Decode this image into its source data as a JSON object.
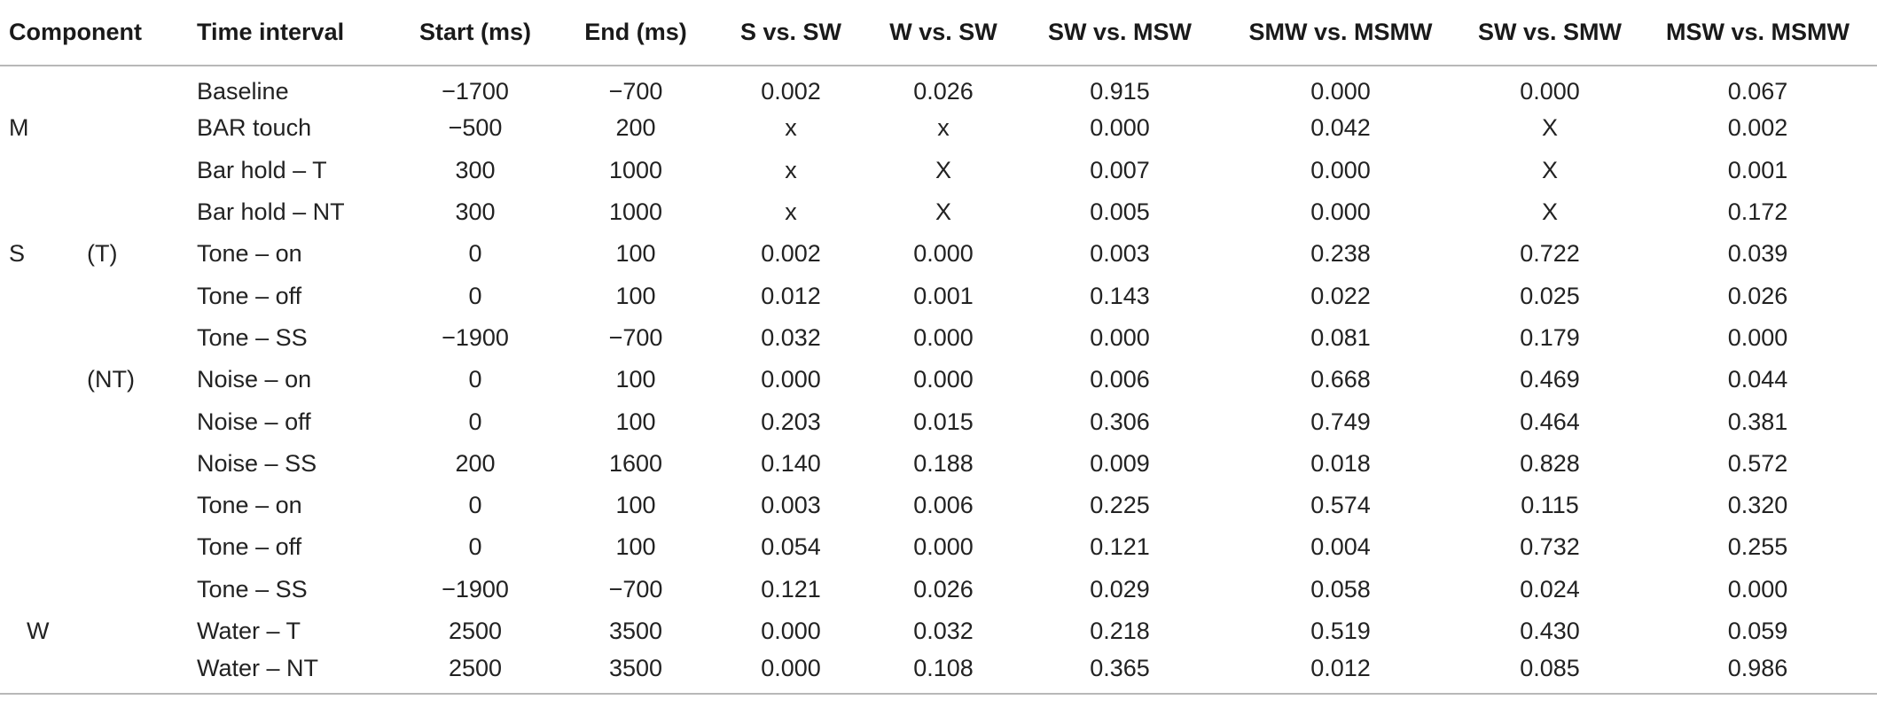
{
  "table": {
    "headers": {
      "component": "Component",
      "time_interval": "Time interval",
      "start": "Start (ms)",
      "end": "End (ms)",
      "s_vs_sw": "S vs. SW",
      "w_vs_sw": "W vs. SW",
      "sw_vs_msw": "SW vs. MSW",
      "smw_vs_msmw": "SMW vs. MSMW",
      "sw_vs_smw": "SW vs. SMW",
      "msw_vs_msmw": "MSW vs. MSMW"
    },
    "rows": [
      {
        "component": "",
        "sub": "",
        "interval": "Baseline",
        "start": "−1700",
        "end": "−700",
        "s_vs_sw": "0.002",
        "w_vs_sw": "0.026",
        "sw_vs_msw": "0.915",
        "smw_vs_msmw": "0.000",
        "sw_vs_smw": "0.000",
        "msw_vs_msmw": "0.067"
      },
      {
        "component": "M",
        "sub": "",
        "interval": "BAR touch",
        "start": "−500",
        "end": "200",
        "s_vs_sw": "x",
        "w_vs_sw": "x",
        "sw_vs_msw": "0.000",
        "smw_vs_msmw": "0.042",
        "sw_vs_smw": "X",
        "msw_vs_msmw": "0.002"
      },
      {
        "component": "",
        "sub": "",
        "interval": "Bar hold – T",
        "start": "300",
        "end": "1000",
        "s_vs_sw": "x",
        "w_vs_sw": "X",
        "sw_vs_msw": "0.007",
        "smw_vs_msmw": "0.000",
        "sw_vs_smw": "X",
        "msw_vs_msmw": "0.001"
      },
      {
        "component": "",
        "sub": "",
        "interval": "Bar hold – NT",
        "start": "300",
        "end": "1000",
        "s_vs_sw": "x",
        "w_vs_sw": "X",
        "sw_vs_msw": "0.005",
        "smw_vs_msmw": "0.000",
        "sw_vs_smw": "X",
        "msw_vs_msmw": "0.172"
      },
      {
        "component": "S",
        "sub": "(T)",
        "interval": "Tone – on",
        "start": "0",
        "end": "100",
        "s_vs_sw": "0.002",
        "w_vs_sw": "0.000",
        "sw_vs_msw": "0.003",
        "smw_vs_msmw": "0.238",
        "sw_vs_smw": "0.722",
        "msw_vs_msmw": "0.039"
      },
      {
        "component": "",
        "sub": "",
        "interval": "Tone – off",
        "start": "0",
        "end": "100",
        "s_vs_sw": "0.012",
        "w_vs_sw": "0.001",
        "sw_vs_msw": "0.143",
        "smw_vs_msmw": "0.022",
        "sw_vs_smw": "0.025",
        "msw_vs_msmw": "0.026"
      },
      {
        "component": "",
        "sub": "",
        "interval": "Tone – SS",
        "start": "−1900",
        "end": "−700",
        "s_vs_sw": "0.032",
        "w_vs_sw": "0.000",
        "sw_vs_msw": "0.000",
        "smw_vs_msmw": "0.081",
        "sw_vs_smw": "0.179",
        "msw_vs_msmw": "0.000"
      },
      {
        "component": "",
        "sub": "(NT)",
        "interval": "Noise – on",
        "start": "0",
        "end": "100",
        "s_vs_sw": "0.000",
        "w_vs_sw": "0.000",
        "sw_vs_msw": "0.006",
        "smw_vs_msmw": "0.668",
        "sw_vs_smw": "0.469",
        "msw_vs_msmw": "0.044"
      },
      {
        "component": "",
        "sub": "",
        "interval": "Noise – off",
        "start": "0",
        "end": "100",
        "s_vs_sw": "0.203",
        "w_vs_sw": "0.015",
        "sw_vs_msw": "0.306",
        "smw_vs_msmw": "0.749",
        "sw_vs_smw": "0.464",
        "msw_vs_msmw": "0.381"
      },
      {
        "component": "",
        "sub": "",
        "interval": "Noise – SS",
        "start": "200",
        "end": "1600",
        "s_vs_sw": "0.140",
        "w_vs_sw": "0.188",
        "sw_vs_msw": "0.009",
        "smw_vs_msmw": "0.018",
        "sw_vs_smw": "0.828",
        "msw_vs_msmw": "0.572"
      },
      {
        "component": "",
        "sub": "",
        "interval": "Tone – on",
        "start": "0",
        "end": "100",
        "s_vs_sw": "0.003",
        "w_vs_sw": "0.006",
        "sw_vs_msw": "0.225",
        "smw_vs_msmw": "0.574",
        "sw_vs_smw": "0.115",
        "msw_vs_msmw": "0.320"
      },
      {
        "component": "",
        "sub": "",
        "interval": "Tone – off",
        "start": "0",
        "end": "100",
        "s_vs_sw": "0.054",
        "w_vs_sw": "0.000",
        "sw_vs_msw": "0.121",
        "smw_vs_msmw": "0.004",
        "sw_vs_smw": "0.732",
        "msw_vs_msmw": "0.255"
      },
      {
        "component": "",
        "sub": "",
        "interval": "Tone – SS",
        "start": "−1900",
        "end": "−700",
        "s_vs_sw": "0.121",
        "w_vs_sw": "0.026",
        "sw_vs_msw": "0.029",
        "smw_vs_msmw": "0.058",
        "sw_vs_smw": "0.024",
        "msw_vs_msmw": "0.000"
      },
      {
        "component": "W",
        "sub": "",
        "interval": "Water – T",
        "start": "2500",
        "end": "3500",
        "s_vs_sw": "0.000",
        "w_vs_sw": "0.032",
        "sw_vs_msw": "0.218",
        "smw_vs_msmw": "0.519",
        "sw_vs_smw": "0.430",
        "msw_vs_msmw": "0.059"
      },
      {
        "component": "",
        "sub": "",
        "interval": "Water – NT",
        "start": "2500",
        "end": "3500",
        "s_vs_sw": "0.000",
        "w_vs_sw": "0.108",
        "sw_vs_msw": "0.365",
        "smw_vs_msmw": "0.012",
        "sw_vs_smw": "0.085",
        "msw_vs_msmw": "0.986"
      }
    ]
  }
}
